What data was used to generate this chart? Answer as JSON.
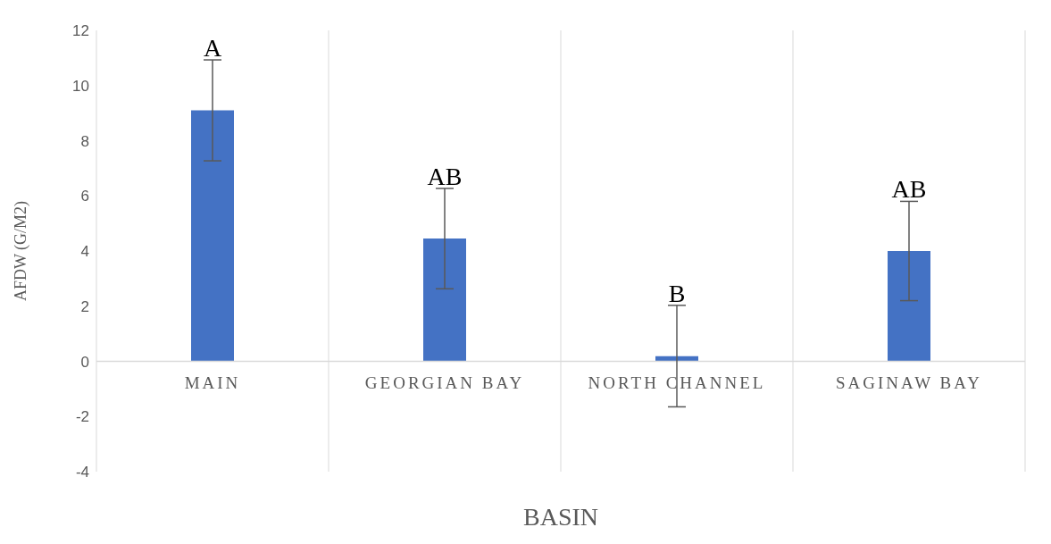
{
  "chart_data": {
    "type": "bar",
    "xlabel": "BASIN",
    "ylabel": "AFDW (G/M2)",
    "categories": [
      "MAIN",
      "GEORGIAN BAY",
      "NORTH CHANNEL",
      "SAGINAW BAY"
    ],
    "values": [
      9.1,
      4.45,
      0.19,
      4.0
    ],
    "errors": [
      1.83,
      1.82,
      1.84,
      1.8
    ],
    "color": "#4472c4",
    "ylim": [
      -4,
      12
    ],
    "yticks": [
      -4,
      -2,
      0,
      2,
      4,
      6,
      8,
      10,
      12
    ],
    "grid": "x",
    "annotations": [
      "A",
      "AB",
      "B",
      "AB"
    ]
  }
}
